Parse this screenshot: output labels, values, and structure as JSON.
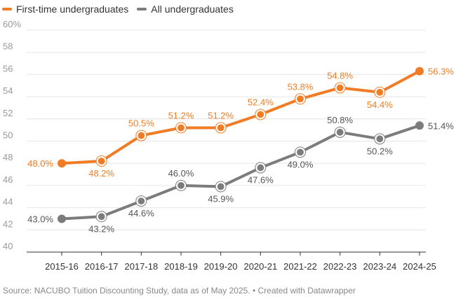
{
  "legend": {
    "items": [
      {
        "label": "First-time undergraduates",
        "color": "#f07d25"
      },
      {
        "label": "All undergraduates",
        "color": "#7c7c7c"
      }
    ]
  },
  "footer": {
    "source": "Source: NACUBO Tuition Discounting Study, data as of May 2025. • Created with Datawrapper"
  },
  "chart_data": {
    "type": "line",
    "x": [
      "2015-16",
      "2016-17",
      "2017-18",
      "2018-19",
      "2019-20",
      "2020-21",
      "2021-22",
      "2022-23",
      "2023-24",
      "2024-25"
    ],
    "ylim": [
      40,
      60
    ],
    "yticks": [
      40,
      42,
      44,
      46,
      48,
      50,
      52,
      54,
      56,
      58,
      60
    ],
    "ytick_labels": [
      "40",
      "42",
      "44",
      "46",
      "48",
      "50",
      "52",
      "54",
      "56",
      "58",
      "60%"
    ],
    "grid": true,
    "legend_position": "top-left",
    "series": [
      {
        "name": "First-time undergraduates",
        "color": "#f07d25",
        "values": [
          48.0,
          48.2,
          50.5,
          51.2,
          51.2,
          52.4,
          53.8,
          54.8,
          54.4,
          56.3
        ],
        "labels": [
          "48.0%",
          "48.2%",
          "50.5%",
          "51.2%",
          "51.2%",
          "52.4%",
          "53.8%",
          "54.8%",
          "54.4%",
          "56.3%"
        ],
        "label_positions": [
          "left",
          "below",
          "above",
          "above",
          "above",
          "above",
          "above",
          "above",
          "below",
          "right"
        ]
      },
      {
        "name": "All undergraduates",
        "color": "#7c7c7c",
        "values": [
          43.0,
          43.2,
          44.6,
          46.0,
          45.9,
          47.6,
          49.0,
          50.8,
          50.2,
          51.4
        ],
        "labels": [
          "43.0%",
          "43.2%",
          "44.6%",
          "46.0%",
          "45.9%",
          "47.6%",
          "49.0%",
          "50.8%",
          "50.2%",
          "51.4%"
        ],
        "label_positions": [
          "left",
          "below",
          "below",
          "above",
          "below",
          "below",
          "below",
          "above",
          "below",
          "right"
        ]
      }
    ]
  }
}
